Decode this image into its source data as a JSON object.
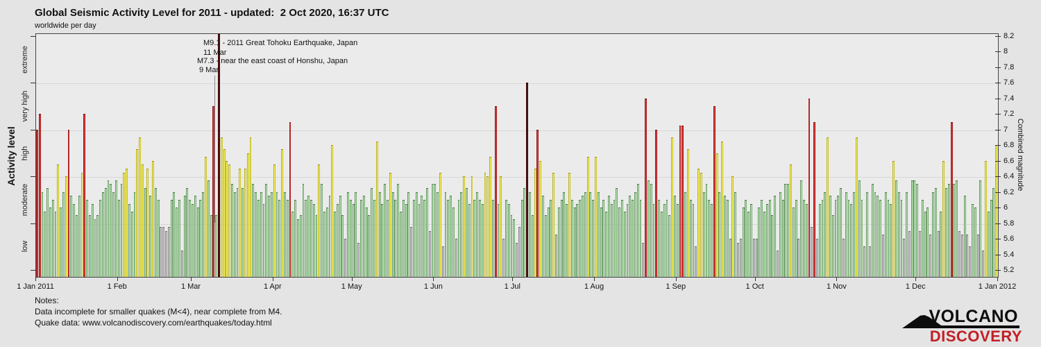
{
  "title": "Global Seismic Activity Level for 2011 - updated:  2 Oct 2020, 16:37 UTC",
  "subtitle": "worldwide per day",
  "annotations": [
    {
      "text": "M9.1 - 2011 Great Tohoku Earthquake, Japan",
      "date_label": "11 Mar"
    },
    {
      "text": "M7.3 - near the east coast of Honshu, Japan",
      "date_label": "9 Mar"
    }
  ],
  "notes": {
    "heading": "Notes:",
    "line1": "Data incomplete for smaller quakes (M<4), near complete from M4.",
    "line2": "Quake data: www.volcanodiscovery.com/earthquakes/today.html"
  },
  "logo": {
    "line1": "VOLCANO",
    "line2": "DISCOVERY"
  },
  "chart_data": {
    "type": "bar",
    "title": "Global Seismic Activity Level for 2011",
    "subtitle": "worldwide per day",
    "left_axis_label": "Activity level",
    "right_axis_label": "Combined magnitude",
    "ylim": [
      5.2,
      8.2
    ],
    "grid": true,
    "level_boundaries": [
      5.8,
      6.4,
      7.0,
      7.6
    ],
    "left_categories": [
      "low",
      "moderate",
      "high",
      "very high",
      "extreme"
    ],
    "right_tick_labels": [
      "5.2",
      "5.4",
      "5.6",
      "5.8",
      "6",
      "6.2",
      "6.4",
      "6.6",
      "6.8",
      "7",
      "7.2",
      "7.4",
      "7.6",
      "7.8",
      "8",
      "8.2"
    ],
    "x_ticks": [
      {
        "label": "1 Jan 2011",
        "day": 0
      },
      {
        "label": "1 Feb",
        "day": 31
      },
      {
        "label": "1 Mar",
        "day": 59
      },
      {
        "label": "1 Apr",
        "day": 90
      },
      {
        "label": "1 May",
        "day": 120
      },
      {
        "label": "1 Jun",
        "day": 151
      },
      {
        "label": "1 Jul",
        "day": 181
      },
      {
        "label": "1 Aug",
        "day": 212
      },
      {
        "label": "1 Sep",
        "day": 243
      },
      {
        "label": "1 Oct",
        "day": 273
      },
      {
        "label": "1 Nov",
        "day": 304
      },
      {
        "label": "1 Dec",
        "day": 334
      },
      {
        "label": "1 Jan 2012",
        "day": 365
      }
    ],
    "colors": {
      "low": {
        "edge": "#6f6f6f",
        "fill": "#b3b3b3",
        "light": "#d6d6d6"
      },
      "moderate": {
        "edge": "#447a3e",
        "fill": "#9fd49a",
        "light": "#ccecc8"
      },
      "high": {
        "edge": "#9b9410",
        "fill": "#f1ea2d",
        "light": "#f9f57e"
      },
      "very_high": {
        "edge": "#7c0e0e",
        "fill": "#d12222",
        "light": "#e04848"
      },
      "extreme": {
        "edge": "#220303",
        "fill": "#4f0b0b",
        "light": "#6b1212"
      }
    },
    "values_unit": "combined magnitude per day, 1 Jan - 31 Dec 2011",
    "values": [
      7.0,
      7.2,
      6.2,
      5.95,
      6.25,
      6.0,
      6.1,
      5.95,
      6.55,
      6.0,
      6.2,
      6.4,
      7.0,
      6.15,
      6.05,
      5.9,
      6.15,
      6.45,
      7.2,
      6.1,
      5.9,
      6.05,
      5.85,
      5.9,
      6.1,
      6.2,
      6.25,
      6.35,
      6.3,
      6.2,
      6.35,
      6.1,
      6.3,
      6.45,
      6.5,
      6.05,
      5.95,
      6.2,
      6.75,
      6.9,
      6.55,
      6.25,
      6.5,
      6.15,
      6.6,
      6.25,
      6.1,
      5.75,
      5.75,
      5.7,
      5.75,
      6.1,
      6.2,
      6.0,
      6.1,
      5.45,
      6.15,
      6.25,
      6.1,
      6.05,
      6.15,
      6.0,
      6.1,
      6.2,
      6.65,
      6.35,
      5.9,
      7.3,
      5.9,
      9.1,
      6.9,
      6.75,
      6.6,
      6.55,
      6.3,
      6.2,
      6.25,
      6.5,
      6.25,
      6.5,
      6.7,
      6.9,
      6.3,
      6.2,
      6.1,
      6.2,
      6.05,
      6.3,
      6.15,
      6.2,
      6.55,
      6.2,
      6.1,
      6.75,
      6.2,
      6.1,
      7.1,
      5.95,
      6.1,
      5.85,
      5.9,
      6.3,
      6.1,
      6.15,
      6.1,
      6.05,
      5.9,
      6.55,
      6.3,
      5.95,
      6.0,
      6.15,
      6.8,
      5.95,
      6.05,
      6.15,
      5.9,
      5.6,
      6.2,
      6.1,
      6.05,
      6.2,
      5.55,
      6.1,
      6.15,
      6.0,
      5.9,
      6.25,
      6.1,
      6.85,
      6.2,
      6.05,
      6.3,
      6.1,
      6.45,
      6.2,
      6.1,
      6.3,
      5.95,
      6.1,
      6.05,
      6.2,
      5.75,
      6.1,
      6.2,
      6.05,
      6.15,
      6.1,
      6.25,
      5.7,
      6.3,
      6.3,
      6.2,
      6.45,
      5.5,
      6.2,
      6.1,
      6.15,
      6.0,
      5.6,
      6.1,
      6.2,
      6.4,
      6.25,
      6.05,
      6.4,
      6.1,
      6.2,
      6.1,
      6.05,
      6.45,
      6.4,
      6.65,
      6.1,
      7.3,
      6.05,
      6.4,
      5.6,
      6.1,
      6.05,
      5.9,
      5.85,
      5.55,
      5.75,
      6.1,
      6.25,
      7.6,
      6.2,
      5.9,
      6.5,
      7.0,
      6.6,
      6.15,
      5.9,
      6.0,
      6.1,
      6.45,
      5.65,
      6.0,
      6.1,
      6.2,
      6.05,
      6.45,
      6.1,
      6.0,
      6.05,
      6.1,
      6.15,
      6.2,
      6.65,
      6.2,
      6.1,
      6.65,
      6.2,
      6.0,
      6.1,
      5.95,
      6.15,
      6.05,
      6.1,
      6.25,
      6.0,
      6.1,
      5.95,
      6.05,
      6.15,
      6.1,
      6.2,
      6.3,
      6.1,
      5.55,
      7.4,
      6.35,
      6.3,
      6.05,
      7.0,
      6.1,
      5.95,
      6.05,
      6.1,
      5.9,
      6.9,
      6.15,
      6.05,
      7.05,
      7.05,
      6.2,
      6.75,
      6.1,
      6.05,
      5.5,
      6.5,
      6.45,
      6.2,
      6.3,
      6.1,
      6.05,
      7.3,
      6.7,
      6.2,
      6.85,
      6.15,
      6.1,
      5.6,
      6.4,
      6.2,
      5.55,
      5.6,
      6.0,
      6.1,
      5.95,
      6.05,
      5.6,
      5.6,
      6.0,
      6.1,
      5.95,
      6.05,
      6.1,
      5.9,
      6.15,
      5.45,
      6.2,
      6.1,
      6.3,
      6.3,
      6.55,
      6.0,
      6.1,
      5.6,
      6.35,
      6.1,
      6.05,
      7.4,
      5.75,
      7.1,
      5.6,
      6.05,
      6.1,
      6.2,
      6.9,
      6.15,
      5.9,
      6.1,
      6.15,
      6.25,
      5.6,
      6.2,
      6.1,
      6.05,
      6.2,
      6.9,
      6.35,
      6.1,
      5.5,
      6.2,
      5.5,
      6.3,
      6.2,
      6.15,
      6.1,
      5.65,
      6.2,
      6.1,
      6.05,
      6.6,
      6.35,
      6.2,
      6.1,
      5.6,
      6.2,
      5.7,
      6.35,
      6.35,
      6.3,
      5.7,
      6.1,
      5.95,
      6.0,
      5.65,
      6.2,
      6.25,
      5.7,
      5.95,
      6.6,
      6.25,
      6.3,
      7.1,
      6.3,
      6.35,
      5.7,
      5.65,
      6.15,
      5.65,
      5.5,
      6.05,
      6.0,
      5.65,
      6.35,
      5.45,
      6.6,
      5.95,
      6.1,
      6.25,
      6.8
    ]
  }
}
